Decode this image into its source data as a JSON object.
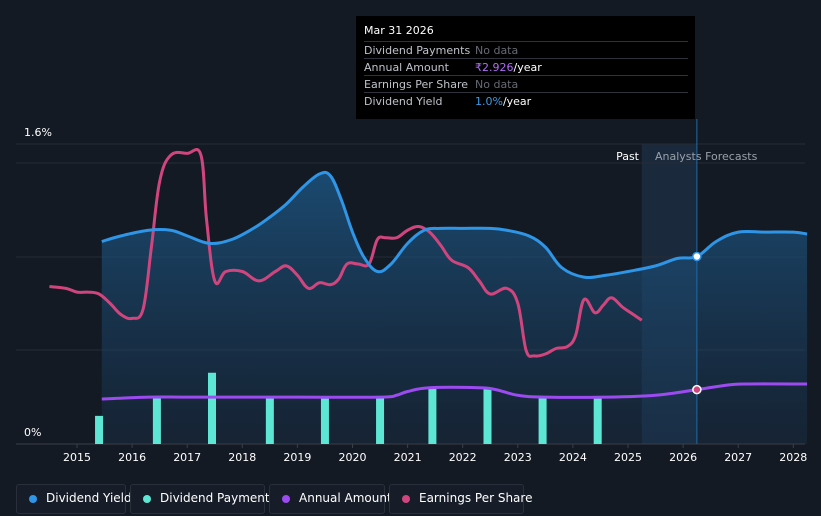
{
  "chart_data": {
    "type": "line",
    "y_axis": {
      "top_label": "1.6%",
      "bottom_label": "0%",
      "ylim": [
        0,
        1.6
      ]
    },
    "x_ticks": [
      "2015",
      "2016",
      "2017",
      "2018",
      "2019",
      "2020",
      "2021",
      "2022",
      "2023",
      "2024",
      "2025",
      "2026",
      "2027",
      "2028"
    ],
    "period_labels": {
      "past": "Past",
      "forecast": "Analysts Forecasts"
    },
    "series": [
      {
        "name": "Dividend Yield",
        "color": "#2f95e6",
        "unit": "%",
        "points": [
          [
            2015.45,
            1.08
          ],
          [
            2015.8,
            1.11
          ],
          [
            2016.3,
            1.14
          ],
          [
            2016.7,
            1.14
          ],
          [
            2017.0,
            1.11
          ],
          [
            2017.4,
            1.07
          ],
          [
            2017.8,
            1.09
          ],
          [
            2018.2,
            1.15
          ],
          [
            2018.5,
            1.21
          ],
          [
            2018.8,
            1.28
          ],
          [
            2019.1,
            1.37
          ],
          [
            2019.4,
            1.44
          ],
          [
            2019.6,
            1.43
          ],
          [
            2019.8,
            1.3
          ],
          [
            2020.0,
            1.13
          ],
          [
            2020.2,
            1.0
          ],
          [
            2020.45,
            0.92
          ],
          [
            2020.7,
            0.96
          ],
          [
            2021.0,
            1.07
          ],
          [
            2021.3,
            1.14
          ],
          [
            2021.6,
            1.15
          ],
          [
            2022.0,
            1.15
          ],
          [
            2022.5,
            1.15
          ],
          [
            2022.8,
            1.14
          ],
          [
            2023.2,
            1.11
          ],
          [
            2023.5,
            1.05
          ],
          [
            2023.8,
            0.94
          ],
          [
            2024.2,
            0.89
          ],
          [
            2024.6,
            0.9
          ],
          [
            2025.0,
            0.92
          ],
          [
            2025.5,
            0.95
          ],
          [
            2025.9,
            0.99
          ],
          [
            2026.25,
            1.0
          ],
          [
            2026.6,
            1.08
          ],
          [
            2027.0,
            1.13
          ],
          [
            2027.5,
            1.13
          ],
          [
            2028.0,
            1.13
          ],
          [
            2028.25,
            1.12
          ]
        ]
      },
      {
        "name": "Earnings Per Share",
        "color": "#d1457e",
        "unit": "relative",
        "points": [
          [
            2014.5,
            0.84
          ],
          [
            2014.8,
            0.83
          ],
          [
            2015.0,
            0.81
          ],
          [
            2015.2,
            0.81
          ],
          [
            2015.4,
            0.8
          ],
          [
            2015.6,
            0.75
          ],
          [
            2015.8,
            0.69
          ],
          [
            2016.0,
            0.67
          ],
          [
            2016.2,
            0.72
          ],
          [
            2016.35,
            1.05
          ],
          [
            2016.5,
            1.4
          ],
          [
            2016.7,
            1.54
          ],
          [
            2017.0,
            1.55
          ],
          [
            2017.25,
            1.54
          ],
          [
            2017.35,
            1.2
          ],
          [
            2017.5,
            0.87
          ],
          [
            2017.7,
            0.92
          ],
          [
            2018.0,
            0.92
          ],
          [
            2018.3,
            0.87
          ],
          [
            2018.6,
            0.92
          ],
          [
            2018.8,
            0.95
          ],
          [
            2019.0,
            0.9
          ],
          [
            2019.2,
            0.83
          ],
          [
            2019.4,
            0.86
          ],
          [
            2019.6,
            0.85
          ],
          [
            2019.75,
            0.88
          ],
          [
            2019.9,
            0.96
          ],
          [
            2020.1,
            0.96
          ],
          [
            2020.3,
            0.96
          ],
          [
            2020.45,
            1.09
          ],
          [
            2020.6,
            1.1
          ],
          [
            2020.8,
            1.1
          ],
          [
            2021.0,
            1.14
          ],
          [
            2021.2,
            1.16
          ],
          [
            2021.4,
            1.13
          ],
          [
            2021.6,
            1.06
          ],
          [
            2021.8,
            0.98
          ],
          [
            2022.1,
            0.94
          ],
          [
            2022.3,
            0.87
          ],
          [
            2022.5,
            0.8
          ],
          [
            2022.8,
            0.83
          ],
          [
            2023.0,
            0.75
          ],
          [
            2023.15,
            0.5
          ],
          [
            2023.3,
            0.47
          ],
          [
            2023.5,
            0.48
          ],
          [
            2023.7,
            0.51
          ],
          [
            2023.9,
            0.52
          ],
          [
            2024.05,
            0.58
          ],
          [
            2024.2,
            0.77
          ],
          [
            2024.4,
            0.7
          ],
          [
            2024.55,
            0.74
          ],
          [
            2024.7,
            0.78
          ],
          [
            2024.9,
            0.73
          ],
          [
            2025.05,
            0.7
          ],
          [
            2025.25,
            0.66
          ]
        ]
      },
      {
        "name": "Annual Amount",
        "color": "#9b4bf0",
        "unit": "relative",
        "points": [
          [
            2015.45,
            0.24
          ],
          [
            2016.3,
            0.25
          ],
          [
            2017.0,
            0.25
          ],
          [
            2018.0,
            0.25
          ],
          [
            2019.0,
            0.25
          ],
          [
            2020.5,
            0.25
          ],
          [
            2020.8,
            0.26
          ],
          [
            2021.0,
            0.28
          ],
          [
            2021.4,
            0.3
          ],
          [
            2022.3,
            0.3
          ],
          [
            2022.6,
            0.29
          ],
          [
            2023.0,
            0.26
          ],
          [
            2023.5,
            0.25
          ],
          [
            2024.6,
            0.25
          ],
          [
            2025.5,
            0.26
          ],
          [
            2026.25,
            0.29
          ],
          [
            2026.7,
            0.31
          ],
          [
            2027.1,
            0.32
          ],
          [
            2028.25,
            0.32
          ]
        ]
      }
    ],
    "bars": {
      "name": "Dividend Payments",
      "color": "#5ee6d4",
      "unit": "relative",
      "items": [
        [
          2015.4,
          0.15
        ],
        [
          2016.45,
          0.25
        ],
        [
          2017.45,
          0.38
        ],
        [
          2018.5,
          0.25
        ],
        [
          2019.5,
          0.25
        ],
        [
          2020.5,
          0.25
        ],
        [
          2021.45,
          0.3
        ],
        [
          2022.45,
          0.3
        ],
        [
          2023.45,
          0.25
        ],
        [
          2024.45,
          0.25
        ]
      ]
    },
    "forecast_start": 2025.25,
    "highlight_date": 2026.25,
    "highlight_points": {
      "Dividend Yield": 1.0,
      "Annual Amount": 0.29
    }
  },
  "tooltip": {
    "date": "Mar 31 2026",
    "rows": [
      {
        "label": "Dividend Payments",
        "value": "No data",
        "unit": "",
        "style": "nodata"
      },
      {
        "label": "Annual Amount",
        "value": "₹2.926",
        "unit": "/year",
        "style": "purple"
      },
      {
        "label": "Earnings Per Share",
        "value": "No data",
        "unit": "",
        "style": "nodata"
      },
      {
        "label": "Dividend Yield",
        "value": "1.0%",
        "unit": "/year",
        "style": "blue"
      }
    ]
  },
  "legend": [
    {
      "label": "Dividend Yield",
      "color": "#2f95e6"
    },
    {
      "label": "Dividend Payments",
      "color": "#5ee6d4"
    },
    {
      "label": "Annual Amount",
      "color": "#9b4bf0"
    },
    {
      "label": "Earnings Per Share",
      "color": "#d1457e"
    }
  ]
}
